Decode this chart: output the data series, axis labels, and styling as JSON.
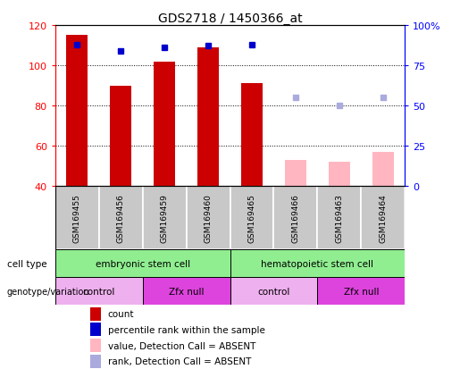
{
  "title": "GDS2718 / 1450366_at",
  "samples": [
    "GSM169455",
    "GSM169456",
    "GSM169459",
    "GSM169460",
    "GSM169465",
    "GSM169466",
    "GSM169463",
    "GSM169464"
  ],
  "count_values": [
    115,
    90,
    102,
    109,
    91,
    null,
    null,
    null
  ],
  "count_absent_values": [
    null,
    null,
    null,
    null,
    null,
    53,
    52,
    57
  ],
  "percentile_rank": [
    88,
    84,
    86,
    87,
    88,
    null,
    null,
    null
  ],
  "percentile_rank_absent": [
    null,
    null,
    null,
    null,
    null,
    55,
    50,
    55
  ],
  "ylim_left": [
    40,
    120
  ],
  "ylim_right": [
    0,
    100
  ],
  "yticks_left": [
    40,
    60,
    80,
    100,
    120
  ],
  "yticks_right": [
    0,
    25,
    50,
    75,
    100
  ],
  "yticklabels_right": [
    "0",
    "25",
    "50",
    "75",
    "100%"
  ],
  "bar_color_present": "#CC0000",
  "bar_color_absent": "#FFB6C1",
  "rank_color_present": "#0000CC",
  "rank_color_absent": "#AAAADD",
  "bar_width": 0.5,
  "sample_box_color": "#C8C8C8",
  "cell_type_color": "#90EE90",
  "control_color": "#EEB0EE",
  "zfx_color": "#DD44DD",
  "legend_items": [
    {
      "label": "count",
      "color": "#CC0000"
    },
    {
      "label": "percentile rank within the sample",
      "color": "#0000CC"
    },
    {
      "label": "value, Detection Call = ABSENT",
      "color": "#FFB6C1"
    },
    {
      "label": "rank, Detection Call = ABSENT",
      "color": "#AAAADD"
    }
  ]
}
